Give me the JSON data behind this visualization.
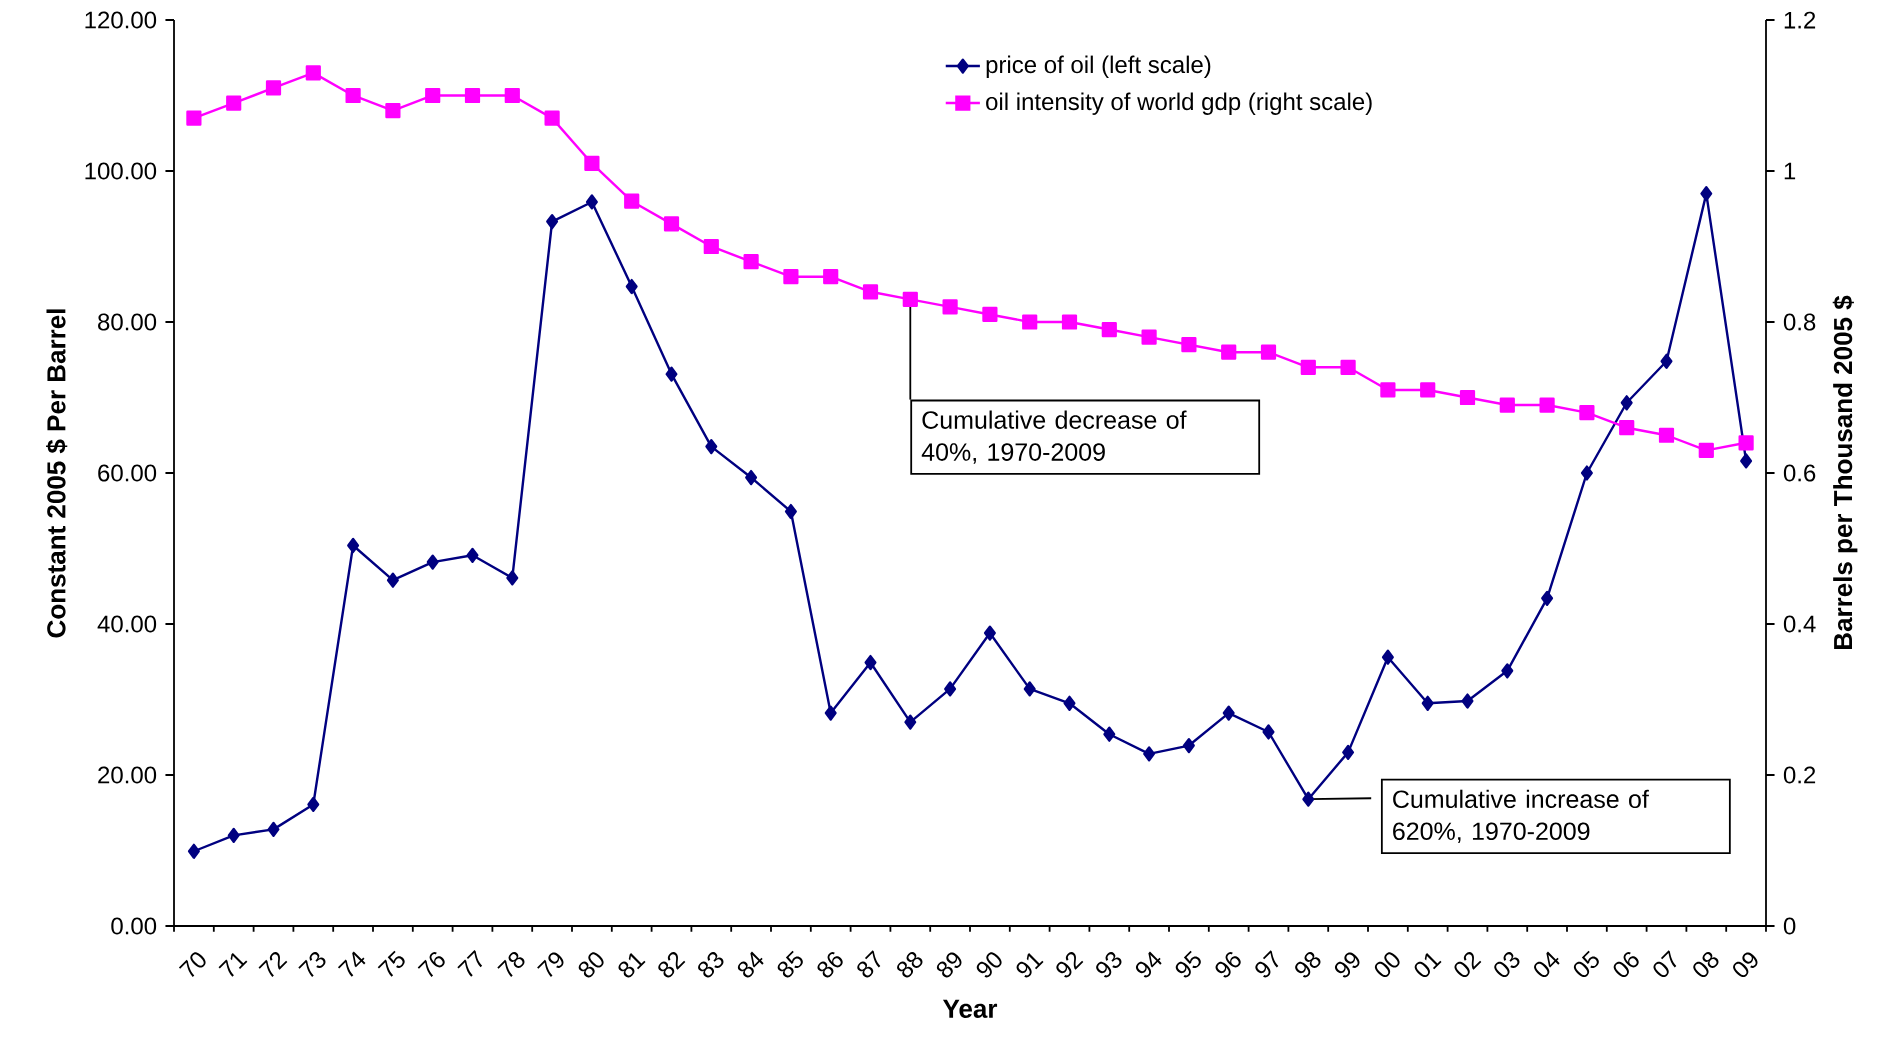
{
  "chart_data": {
    "type": "line",
    "xlabel": "Year",
    "ylabel": "Constant 2005 $ Per Barrel",
    "y2label": "Barrels per Thousand 2005 $",
    "categories": [
      "70",
      "71",
      "72",
      "73",
      "74",
      "75",
      "76",
      "77",
      "78",
      "79",
      "80",
      "81",
      "82",
      "83",
      "84",
      "85",
      "86",
      "87",
      "88",
      "89",
      "90",
      "91",
      "92",
      "93",
      "94",
      "95",
      "96",
      "97",
      "98",
      "99",
      "00",
      "01",
      "02",
      "03",
      "04",
      "05",
      "06",
      "07",
      "08",
      "09"
    ],
    "series": [
      {
        "name": "price of oil (left scale)",
        "color": "#000080",
        "marker": "diamond",
        "values": [
          9.9,
          12.0,
          12.8,
          16.1,
          50.4,
          45.8,
          48.2,
          49.1,
          46.1,
          93.3,
          95.9,
          84.7,
          73.1,
          63.5,
          59.4,
          54.9,
          28.2,
          34.9,
          27.0,
          31.4,
          38.8,
          31.4,
          29.5,
          25.4,
          22.8,
          23.9,
          28.2,
          25.7,
          16.8,
          23.0,
          35.6,
          29.5,
          29.8,
          33.8,
          43.4,
          60.0,
          69.3,
          74.8,
          97.0,
          61.6
        ]
      },
      {
        "name": "oil intensity of world gdp (right scale)",
        "color": "#ff00ff",
        "marker": "square",
        "axis": "y2",
        "values": [
          1.07,
          1.09,
          1.11,
          1.13,
          1.1,
          1.08,
          1.1,
          1.1,
          1.1,
          1.07,
          1.01,
          0.96,
          0.93,
          0.9,
          0.88,
          0.86,
          0.86,
          0.84,
          0.83,
          0.82,
          0.81,
          0.8,
          0.8,
          0.79,
          0.78,
          0.77,
          0.76,
          0.76,
          0.74,
          0.74,
          0.71,
          0.71,
          0.7,
          0.69,
          0.69,
          0.68,
          0.66,
          0.65,
          0.63,
          0.64
        ]
      }
    ],
    "ylim": [
      0,
      120
    ],
    "yticks": [
      {
        "value": 0,
        "label": "0.00"
      },
      {
        "value": 20,
        "label": "20.00"
      },
      {
        "value": 40,
        "label": "40.00"
      },
      {
        "value": 60,
        "label": "60.00"
      },
      {
        "value": 80,
        "label": "80.00"
      },
      {
        "value": 100,
        "label": "100.00"
      },
      {
        "value": 120,
        "label": "120.00"
      }
    ],
    "y2lim": [
      0,
      1.2
    ],
    "y2ticks": [
      0,
      0.2,
      0.4,
      0.6,
      0.8,
      1,
      1.2
    ],
    "legend": "top",
    "annotations": [
      {
        "text": "Cumulative decrease of 40%, 1970-2009",
        "x": "88",
        "y": 82
      },
      {
        "text": "Cumulative increase of 620%, 1970-2009",
        "x": "98",
        "y": 16.8
      }
    ]
  }
}
